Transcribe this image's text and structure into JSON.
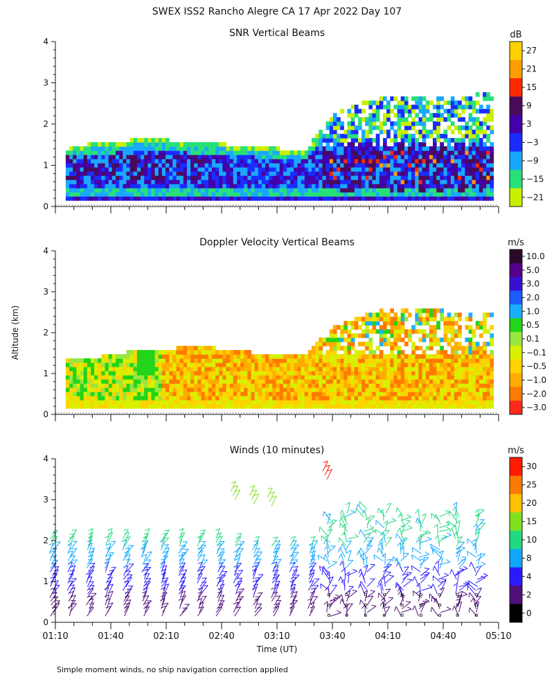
{
  "figure": {
    "title": "SWEX ISS2 Rancho Alegre CA  17 Apr 2022 Day 107",
    "ylabel": "Altitude (km)",
    "xlabel": "Time (UT)",
    "footnote": "Simple moment winds, no ship navigation correction applied"
  },
  "chart_data": [
    {
      "type": "heatmap",
      "id": "snr",
      "title": "SNR Vertical Beams",
      "ylim": [
        0,
        4
      ],
      "yticks": [
        "0",
        "1",
        "2",
        "3",
        "4"
      ],
      "colorbar": {
        "unit": "dB",
        "labels": [
          "27",
          "21",
          "15",
          "9",
          "3",
          "−3",
          "−9",
          "−15",
          "−21"
        ],
        "colors": [
          "#ffd000",
          "#ff9c00",
          "#ff2a00",
          "#4a0a5c",
          "#4400aa",
          "#1a2cff",
          "#1aa8ff",
          "#28e07a",
          "#c8f000"
        ]
      },
      "approx_columns": [
        {
          "t": 1.17,
          "top": 1.3,
          "core": 0.9
        },
        {
          "t": 1.5,
          "top": 1.5,
          "core": 1.1
        },
        {
          "t": 2.0,
          "top": 1.6,
          "core": 1.3
        },
        {
          "t": 2.5,
          "top": 1.5,
          "core": 1.2
        },
        {
          "t": 3.0,
          "top": 1.4,
          "core": 1.1
        },
        {
          "t": 3.4,
          "top": 1.3,
          "core": 1.1
        },
        {
          "t": 3.7,
          "top": 2.3,
          "core": 1.2
        },
        {
          "t": 4.1,
          "top": 2.6,
          "core": 1.3
        },
        {
          "t": 4.6,
          "top": 2.6,
          "core": 1.2
        },
        {
          "t": 5.1,
          "top": 2.7,
          "core": 1.2
        }
      ]
    },
    {
      "type": "heatmap",
      "id": "doppler",
      "title": "Doppler Velocity Vertical Beams",
      "ylim": [
        0,
        4
      ],
      "yticks": [
        "0",
        "1",
        "2",
        "3",
        "4"
      ],
      "colorbar": {
        "unit": "m/s",
        "labels": [
          "10.0",
          "5.0",
          "3.0",
          "2.0",
          "1.0",
          "0.5",
          "0.1",
          "−0.1",
          "−0.5",
          "−1.0",
          "−2.0",
          "−3.0"
        ],
        "colors": [
          "#2a0a2a",
          "#55008a",
          "#3a10d0",
          "#1a5cff",
          "#1ab0ff",
          "#22d41a",
          "#98e640",
          "#d8f000",
          "#ffd200",
          "#ffac00",
          "#ff7a00",
          "#ff2a1a"
        ]
      },
      "approx_columns": [
        {
          "t": 1.17,
          "top": 1.35
        },
        {
          "t": 1.5,
          "top": 1.35
        },
        {
          "t": 2.0,
          "top": 1.55
        },
        {
          "t": 2.5,
          "top": 1.6
        },
        {
          "t": 3.0,
          "top": 1.45
        },
        {
          "t": 3.4,
          "top": 1.4
        },
        {
          "t": 3.7,
          "top": 2.2
        },
        {
          "t": 4.1,
          "top": 2.5
        },
        {
          "t": 4.6,
          "top": 2.5
        },
        {
          "t": 5.1,
          "top": 2.4
        }
      ]
    },
    {
      "type": "scatter",
      "id": "winds",
      "title": "Winds (10 minutes)",
      "ylim": [
        0,
        4
      ],
      "yticks": [
        "0",
        "1",
        "2",
        "3",
        "4"
      ],
      "colorbar": {
        "unit": "m/s",
        "labels": [
          "30",
          "25",
          "20",
          "15",
          "10",
          "8",
          "4",
          "2",
          "0"
        ],
        "colors": [
          "#ff1a00",
          "#ff7a00",
          "#ffc000",
          "#80e020",
          "#22d880",
          "#10a8ff",
          "#2a1aff",
          "#50107a",
          "#000000"
        ]
      },
      "profiles": [
        {
          "t": 1.17,
          "top": 2.1
        },
        {
          "t": 1.33,
          "top": 2.1
        },
        {
          "t": 1.5,
          "top": 2.1
        },
        {
          "t": 1.67,
          "top": 2.1
        },
        {
          "t": 1.83,
          "top": 2.1
        },
        {
          "t": 2.0,
          "top": 2.1
        },
        {
          "t": 2.17,
          "top": 2.1
        },
        {
          "t": 2.33,
          "top": 2.1
        },
        {
          "t": 2.5,
          "top": 2.1
        },
        {
          "t": 2.67,
          "top": 2.1
        },
        {
          "t": 2.83,
          "top": 2.0
        },
        {
          "t": 3.0,
          "top": 1.9
        },
        {
          "t": 3.17,
          "top": 1.9
        },
        {
          "t": 3.33,
          "top": 1.9
        },
        {
          "t": 3.5,
          "top": 1.9
        },
        {
          "t": 3.67,
          "top": 2.5
        },
        {
          "t": 3.83,
          "top": 2.7
        },
        {
          "t": 4.0,
          "top": 2.8
        },
        {
          "t": 4.17,
          "top": 2.7
        },
        {
          "t": 4.33,
          "top": 2.6
        },
        {
          "t": 4.5,
          "top": 2.5
        },
        {
          "t": 4.67,
          "top": 2.6
        },
        {
          "t": 4.83,
          "top": 2.7
        },
        {
          "t": 5.0,
          "top": 2.6
        }
      ],
      "upper_barbs": [
        {
          "t": 2.75,
          "alt": 3.2,
          "speed": 15
        },
        {
          "t": 2.92,
          "alt": 3.1,
          "speed": 15
        },
        {
          "t": 3.08,
          "alt": 3.05,
          "speed": 15
        },
        {
          "t": 3.58,
          "alt": 3.7,
          "speed": 28
        }
      ]
    }
  ],
  "x_axis": {
    "range_hours": [
      1.1667,
      5.1667
    ],
    "tick_labels": [
      "01:10",
      "01:40",
      "02:10",
      "02:40",
      "03:10",
      "03:40",
      "04:10",
      "04:40",
      "05:10"
    ]
  }
}
